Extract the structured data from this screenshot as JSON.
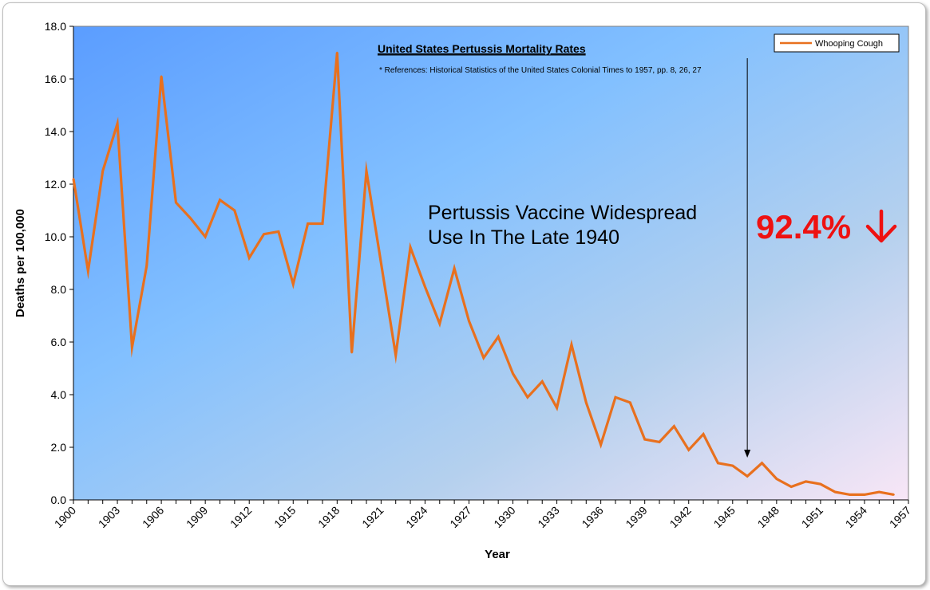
{
  "chart_data": {
    "type": "line",
    "title": "United States Pertussis Mortality Rates",
    "subtitle": "* References: Historical Statistics of the United States Colonial Times to 1957, pp. 8, 26, 27",
    "xlabel": "Year",
    "ylabel": "Deaths per 100,000",
    "xlim": [
      1900,
      1957
    ],
    "ylim": [
      0,
      18
    ],
    "y_ticks": [
      "0.0",
      "2.0",
      "4.0",
      "6.0",
      "8.0",
      "10.0",
      "12.0",
      "14.0",
      "16.0",
      "18.0"
    ],
    "x_ticks": [
      "1900",
      "1903",
      "1906",
      "1909",
      "1912",
      "1915",
      "1918",
      "1921",
      "1924",
      "1927",
      "1930",
      "1933",
      "1936",
      "1939",
      "1942",
      "1945",
      "1948",
      "1951",
      "1954",
      "1957"
    ],
    "grid": false,
    "legend": "top-right",
    "series": [
      {
        "name": "Whooping Cough",
        "color": "#e8701e",
        "x": [
          1900,
          1901,
          1902,
          1903,
          1904,
          1905,
          1906,
          1907,
          1908,
          1909,
          1910,
          1911,
          1912,
          1913,
          1914,
          1915,
          1916,
          1917,
          1918,
          1919,
          1920,
          1921,
          1922,
          1923,
          1924,
          1925,
          1926,
          1927,
          1928,
          1929,
          1930,
          1931,
          1932,
          1933,
          1934,
          1935,
          1936,
          1937,
          1938,
          1939,
          1940,
          1941,
          1942,
          1943,
          1944,
          1945,
          1946,
          1947,
          1948,
          1949,
          1950,
          1951,
          1952,
          1953,
          1954,
          1955,
          1956
        ],
        "values": [
          12.2,
          8.7,
          12.5,
          14.3,
          5.8,
          8.9,
          16.1,
          11.3,
          10.7,
          10.0,
          11.4,
          11.0,
          9.2,
          10.1,
          10.2,
          8.2,
          10.5,
          10.5,
          17.0,
          5.6,
          12.5,
          9.0,
          5.5,
          9.6,
          8.1,
          6.7,
          8.8,
          6.8,
          5.4,
          6.2,
          4.8,
          3.9,
          4.5,
          3.5,
          5.9,
          3.7,
          2.1,
          3.9,
          3.7,
          2.3,
          2.2,
          2.8,
          1.9,
          2.5,
          1.4,
          1.3,
          0.9,
          1.4,
          0.8,
          0.5,
          0.7,
          0.6,
          0.3,
          0.2,
          0.2,
          0.3,
          0.2
        ]
      }
    ],
    "annotations": [
      {
        "text_lines": [
          "Pertussis  Vaccine Widespread",
          "Use In The Late 1940"
        ]
      },
      {
        "text": "92.4%",
        "arrow": "down",
        "color": "#ee1111",
        "arrow_year": 1946
      }
    ],
    "plot_gradient": [
      "#5b9dff",
      "#82c0ff",
      "#b4d0ee",
      "#f8e6f6"
    ]
  }
}
